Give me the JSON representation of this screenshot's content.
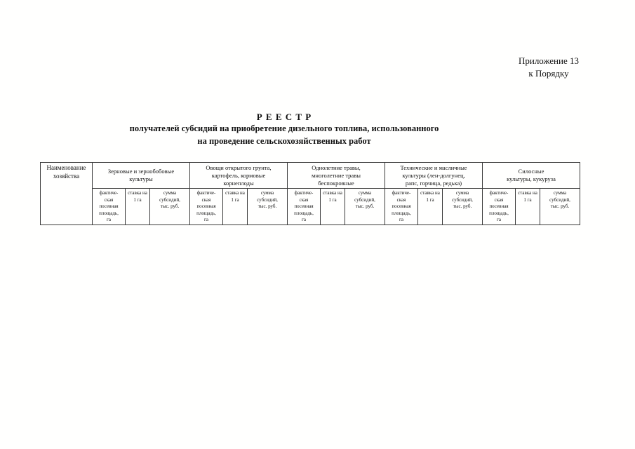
{
  "page": {
    "appendix": {
      "line1": "Приложение 13",
      "line2": "к Порядку"
    },
    "title": "Р Е Е С Т Р",
    "subtitle_line1": "получателей субсидий на приобретение дизельного топлива, использованного",
    "subtitle_line2": "на проведение сельскохозяйственных работ"
  },
  "table": {
    "farm_name_header": "Наименование\nхозяйства",
    "groups": [
      {
        "label": "Зерновые и зернобобовые\nкультуры"
      },
      {
        "label": "Овощи открытого грунта,\nкартофель, кормовые\nкорнеплоды"
      },
      {
        "label": "Однолетние травы,\nмноголетние травы\nбеспокровные"
      },
      {
        "label": "Технические и  масличные\nкультуры (лен-долгунец,\nрапс, горчица, редька)"
      },
      {
        "label": "Силосные\nкультуры, кукуруза"
      }
    ],
    "subheaders": [
      "фактиче-\nская\nпосевная\nплощадь,\nга",
      "ставка на\n1 га",
      "сумма\nсубсидий,\nтыс. руб."
    ]
  }
}
